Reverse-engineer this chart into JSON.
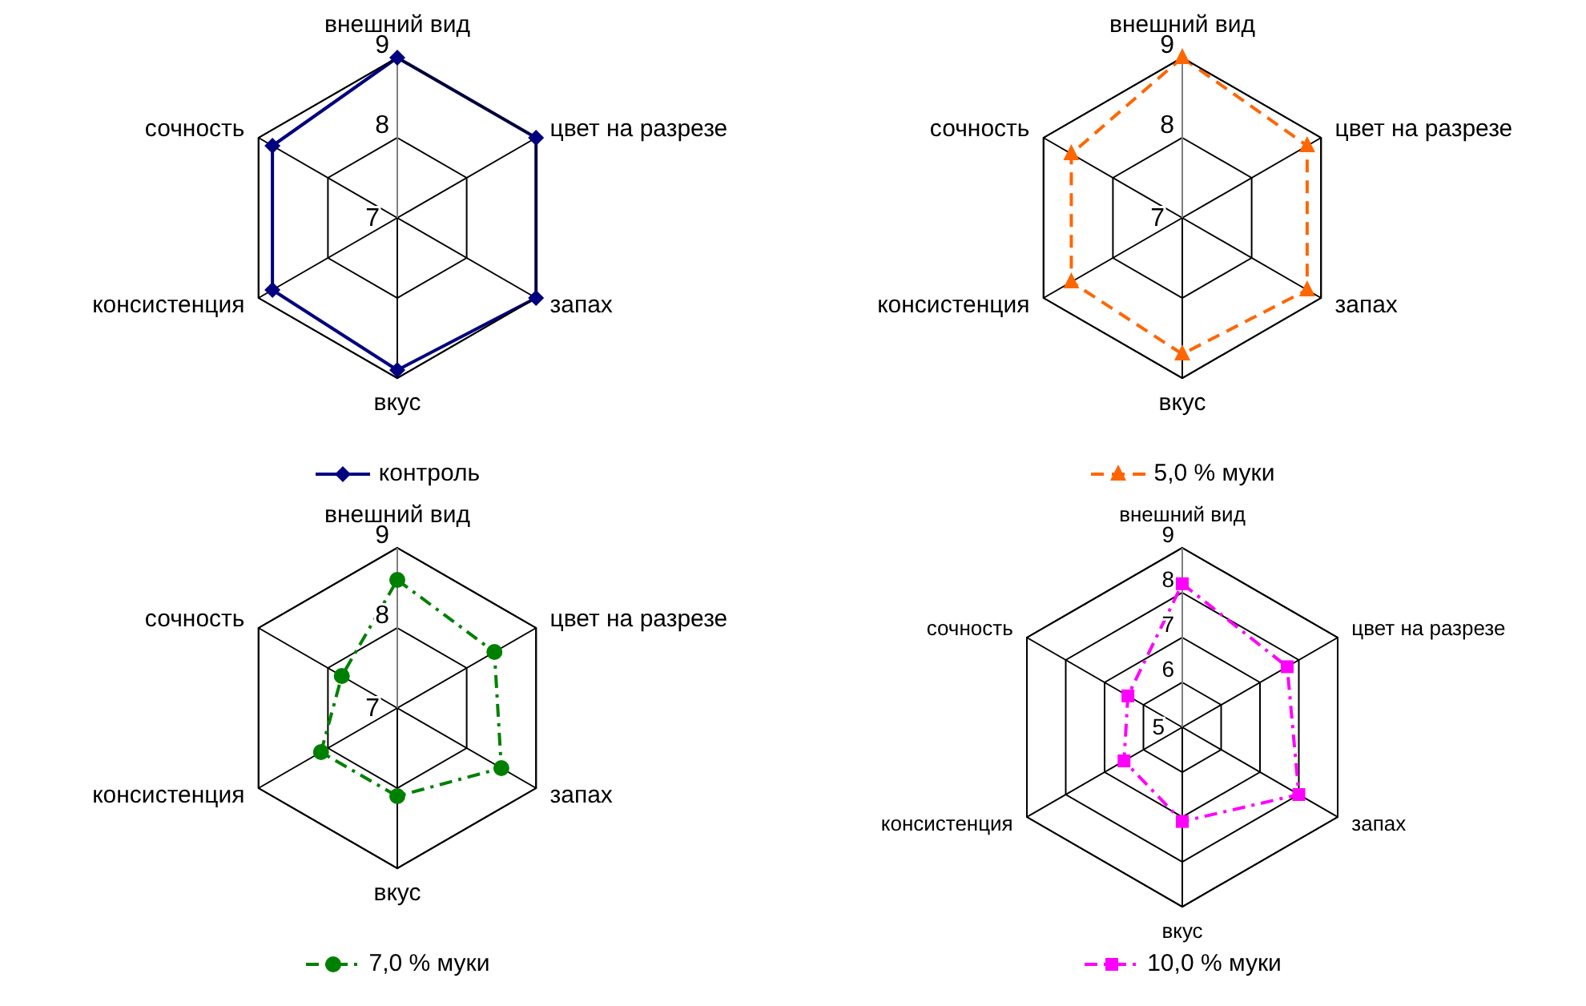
{
  "chart_data": [
    {
      "type": "radar",
      "categories": [
        "внешний вид",
        "цвет на разрезе",
        "запах",
        "вкус",
        "консистенция",
        "сочность"
      ],
      "series": [
        {
          "name": "контроль",
          "color": "#000080",
          "values": [
            9,
            9,
            9,
            8.9,
            8.8,
            8.8
          ]
        }
      ],
      "ylim": [
        7,
        9
      ],
      "yticks": [
        7,
        8,
        9
      ],
      "grid": true,
      "legend": "bottom",
      "marker": "diamond",
      "line_style": "solid"
    },
    {
      "type": "radar",
      "categories": [
        "внешний вид",
        "цвет на разрезе",
        "запах",
        "вкус",
        "консистенция",
        "сочность"
      ],
      "series": [
        {
          "name": "5,0 % муки",
          "color": "#ff6600",
          "values": [
            9,
            8.8,
            8.8,
            8.7,
            8.6,
            8.6
          ]
        }
      ],
      "ylim": [
        7,
        9
      ],
      "yticks": [
        7,
        8,
        9
      ],
      "grid": true,
      "legend": "bottom",
      "marker": "triangle",
      "line_style": "dashed"
    },
    {
      "type": "radar",
      "categories": [
        "внешний вид",
        "цвет на разрезе",
        "запах",
        "вкус",
        "консистенция",
        "сочность"
      ],
      "series": [
        {
          "name": "7,0 % муки",
          "color": "#008000",
          "values": [
            8.6,
            8.4,
            8.5,
            8.1,
            8.1,
            7.8
          ]
        }
      ],
      "ylim": [
        7,
        9
      ],
      "yticks": [
        7,
        8,
        9
      ],
      "grid": true,
      "legend": "bottom",
      "marker": "circle",
      "line_style": "dashdot"
    },
    {
      "type": "radar",
      "categories": [
        "внешний вид",
        "цвет на разрезе",
        "запах",
        "вкус",
        "консистенция",
        "сочность"
      ],
      "series": [
        {
          "name": "10,0 % муки",
          "color": "#ff00ff",
          "values": [
            8.2,
            7.7,
            8,
            7.1,
            6.5,
            6.4
          ]
        }
      ],
      "ylim": [
        5,
        9
      ],
      "yticks": [
        5,
        6,
        7,
        8,
        9
      ],
      "grid": true,
      "legend": "bottom",
      "marker": "square",
      "line_style": "dashdot"
    }
  ]
}
